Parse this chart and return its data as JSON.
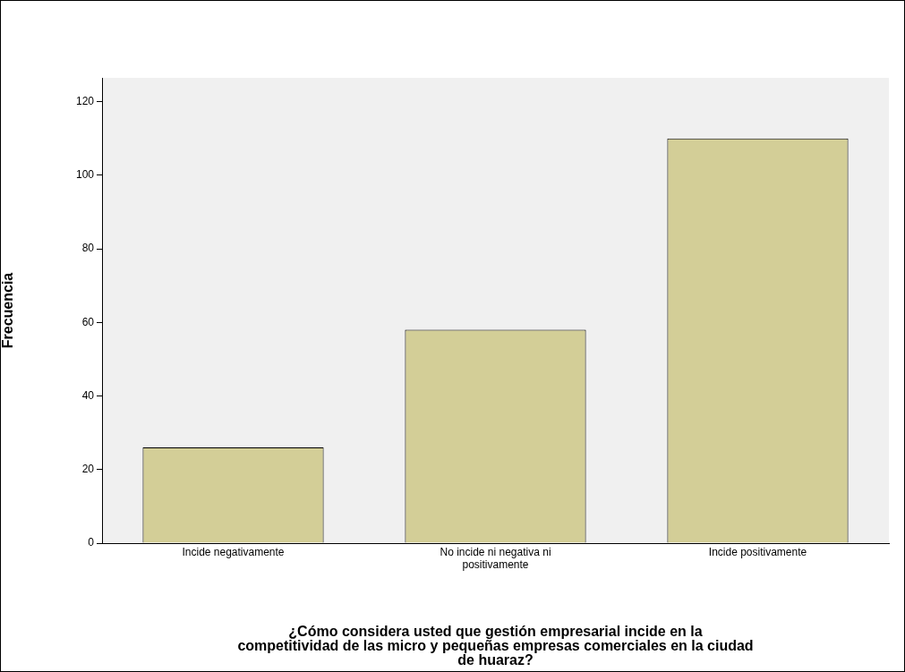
{
  "chart_data": {
    "type": "bar",
    "xlabel": "¿Cómo considera usted que gestión empresarial incide en la competitividad de las micro y pequeñas empresas comerciales en la ciudad de huaraz?",
    "ylabel": "Frecuencia",
    "categories": [
      "Incide negativamente",
      "No incide ni negativa ni positivamente",
      "Incide positivamente"
    ],
    "values": [
      26,
      58,
      110
    ],
    "color": "#d3ce97",
    "ylim": [
      0,
      126.5
    ],
    "yticks": [
      0,
      20,
      40,
      60,
      80,
      100,
      120
    ],
    "grid": false,
    "legend": false
  }
}
